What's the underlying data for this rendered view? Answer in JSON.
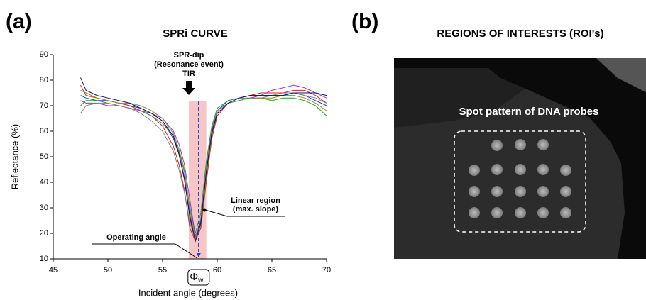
{
  "chart_data": {
    "type": "line",
    "panel_label": "(a)",
    "title": "SPRi CURVE",
    "x_label": "Incident angle  (degrees)",
    "y_label": "Reflectance (%)",
    "annotations": {
      "dip": [
        "SPR-dip",
        "(Resonance event)",
        "TIR"
      ],
      "linear": [
        "Linear region",
        "(max. slope)"
      ],
      "operating": "Operating angle",
      "symbol": "Φ",
      "subscript": "w"
    },
    "highlight_band": [
      57.4,
      59
    ],
    "operating_angle": 58.3,
    "x": [
      47.5,
      48,
      49,
      50,
      51,
      52,
      53,
      54,
      55,
      56,
      56.5,
      57,
      57.5,
      58,
      58.5,
      59,
      59.5,
      60,
      61,
      62,
      63,
      64,
      65,
      66,
      67,
      68,
      69,
      70
    ],
    "series": [
      {
        "color": "#1f3fd0",
        "values": [
          74,
          73,
          72,
          72,
          71,
          70,
          69,
          67,
          64,
          57,
          51,
          42,
          27,
          18,
          25,
          45,
          60,
          68,
          72,
          73,
          74,
          74,
          74,
          74,
          75,
          74,
          72,
          70
        ]
      },
      {
        "color": "#d02020",
        "values": [
          78,
          74,
          73,
          72,
          71,
          70,
          68,
          66,
          62,
          54,
          47,
          37,
          22,
          17,
          22,
          40,
          57,
          66,
          71,
          73,
          74,
          75,
          75,
          75,
          76,
          76,
          74,
          71
        ]
      },
      {
        "color": "#2a9a2a",
        "values": [
          70,
          72,
          72,
          71,
          70,
          69,
          68,
          66,
          63,
          58,
          52,
          44,
          30,
          20,
          28,
          48,
          62,
          69,
          72,
          73,
          73,
          73,
          72,
          73,
          73,
          72,
          70,
          66
        ]
      },
      {
        "color": "#9a30c0",
        "values": [
          72,
          71,
          71,
          70,
          70,
          69,
          68,
          67,
          65,
          60,
          55,
          47,
          33,
          19,
          24,
          43,
          59,
          67,
          71,
          72,
          73,
          74,
          76,
          77,
          78,
          77,
          75,
          73
        ]
      },
      {
        "color": "#8a8a20",
        "values": [
          76,
          75,
          73,
          72,
          71,
          71,
          70,
          68,
          65,
          59,
          53,
          45,
          29,
          18,
          23,
          42,
          58,
          67,
          71,
          72,
          73,
          73,
          73,
          74,
          74,
          73,
          71,
          68
        ]
      },
      {
        "color": "#808080",
        "values": [
          67,
          70,
          71,
          71,
          70,
          69,
          67,
          64,
          60,
          52,
          45,
          36,
          24,
          18,
          26,
          46,
          61,
          68,
          71,
          72,
          73,
          73,
          74,
          75,
          75,
          74,
          73,
          71
        ]
      },
      {
        "color": "#10106a",
        "values": [
          81,
          76,
          74,
          73,
          72,
          71,
          69,
          67,
          64,
          58,
          51,
          41,
          26,
          17,
          24,
          44,
          59,
          67,
          71,
          73,
          74,
          74,
          74,
          74,
          75,
          75,
          75,
          74
        ]
      }
    ],
    "xlim": [
      45,
      70
    ],
    "xticks": [
      45,
      50,
      55,
      60,
      65,
      70
    ],
    "ylim": [
      10,
      90
    ],
    "yticks": [
      10,
      20,
      30,
      40,
      50,
      60,
      70,
      80,
      90
    ]
  },
  "panel_b": {
    "label": "(b)",
    "title": "REGIONS OF INTERESTS (ROI's)",
    "caption": "Spot pattern of DNA probes"
  }
}
